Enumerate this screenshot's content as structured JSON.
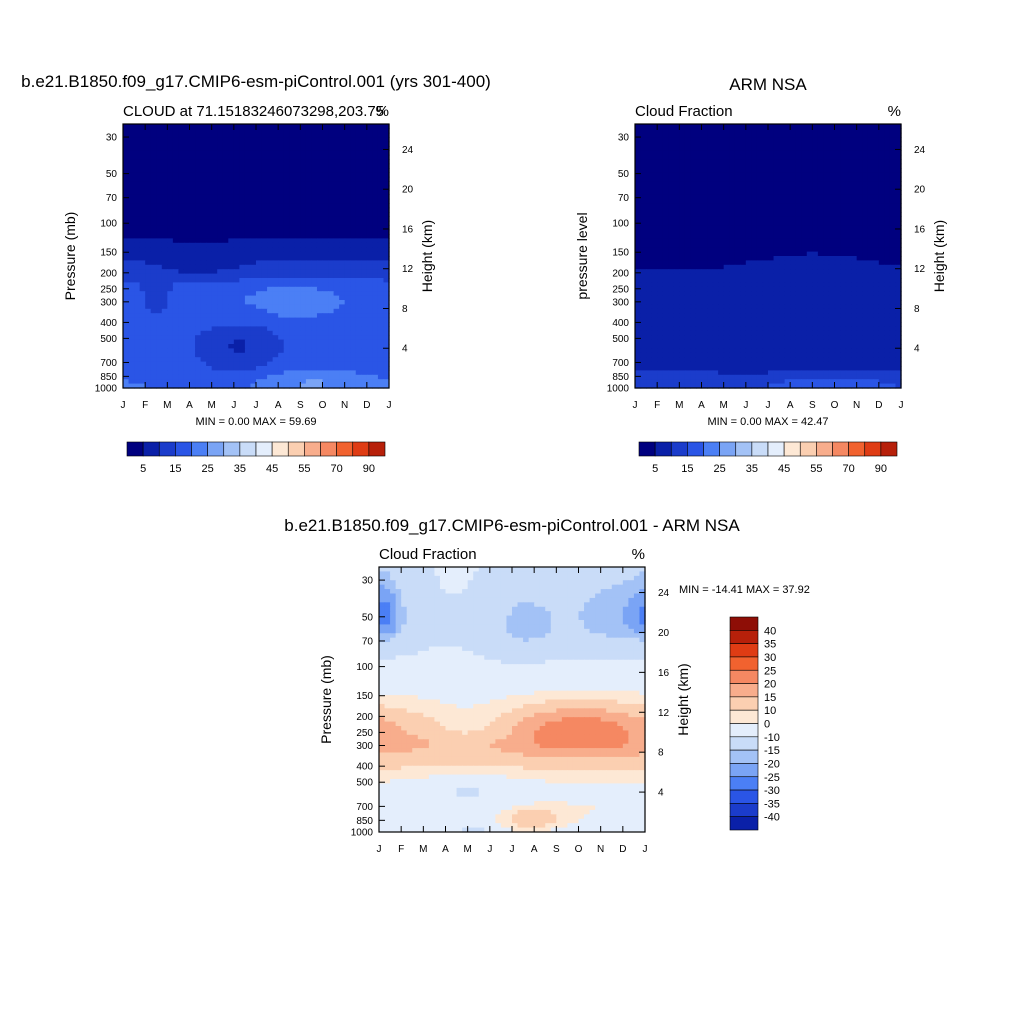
{
  "page_title": "",
  "palette": [
    "#00007f",
    "#0a20a8",
    "#1b3ccb",
    "#2a55e6",
    "#4b7ff5",
    "#7aa4f5",
    "#a3c2f6",
    "#c9dcf8",
    "#e4eefc",
    "#fde8d5",
    "#fbcfb1",
    "#f8ad8c",
    "#f58862",
    "#f1622f",
    "#df3c14",
    "#b7200a",
    "#8e0e06"
  ],
  "charts": [
    {
      "id": "model",
      "title": "b.e21.B1850.f09_g17.CMIP6-esm-piControl.001 (yrs 301-400)",
      "left_label": "CLOUD at 71.15183246073298,203.75",
      "right_label": "%",
      "ylabel": "Pressure (mb)",
      "y2label": "Height (km)",
      "stats": "MIN =   0.00 MAX =  59.69",
      "colorbar": {
        "orientation": "horizontal",
        "tick_labels": [
          "5",
          "15",
          "25",
          "35",
          "45",
          "55",
          "70",
          "90"
        ]
      }
    },
    {
      "id": "obs",
      "title": "ARM NSA",
      "left_label": "Cloud Fraction",
      "right_label": "%",
      "ylabel": "pressure level",
      "y2label": "Height (km)",
      "stats": "MIN =   0.00 MAX =  42.47",
      "colorbar": {
        "orientation": "horizontal",
        "tick_labels": [
          "5",
          "15",
          "25",
          "35",
          "45",
          "55",
          "70",
          "90"
        ]
      }
    },
    {
      "id": "diff",
      "title": "b.e21.B1850.f09_g17.CMIP6-esm-piControl.001 - ARM NSA",
      "left_label": "Cloud Fraction",
      "right_label": "%",
      "ylabel": "Pressure (mb)",
      "y2label": "Height (km)",
      "stats": "MIN = -14.41 MAX =  37.92",
      "colorbar": {
        "orientation": "vertical",
        "tick_labels": [
          "40",
          "35",
          "30",
          "25",
          "20",
          "15",
          "10",
          "0",
          "-10",
          "-15",
          "-20",
          "-25",
          "-30",
          "-35",
          "-40"
        ]
      }
    }
  ],
  "chart_data": [
    {
      "type": "heatmap",
      "title": "b.e21.B1850.f09_g17.CMIP6-esm-piControl.001 (yrs 301-400)",
      "ylabel": "Pressure (mb)",
      "y2label": "Height (km)",
      "x": [
        "J",
        "F",
        "M",
        "A",
        "M",
        "J",
        "J",
        "A",
        "S",
        "O",
        "N",
        "D",
        "J"
      ],
      "y_pressure_ticks": [
        "30",
        "50",
        "70",
        "100",
        "150",
        "200",
        "250",
        "300",
        "400",
        "500",
        "700",
        "850",
        "1000"
      ],
      "y2_height_ticks": [
        "24",
        "20",
        "16",
        "12",
        "8",
        "4"
      ],
      "levels": [
        5,
        15,
        25,
        35,
        45,
        55,
        70,
        90
      ],
      "min": 0.0,
      "max": 59.69,
      "profiles": {
        "pressure_mb": [
          30,
          50,
          70,
          100,
          150,
          200,
          250,
          300,
          400,
          500,
          700,
          850,
          1000
        ],
        "annual_mean_approx": [
          0,
          0,
          0,
          0,
          0,
          3,
          14,
          24,
          30,
          30,
          28,
          30,
          35
        ]
      }
    },
    {
      "type": "heatmap",
      "title": "ARM NSA",
      "ylabel": "pressure level",
      "y2label": "Height (km)",
      "x": [
        "J",
        "F",
        "M",
        "A",
        "M",
        "J",
        "J",
        "A",
        "S",
        "O",
        "N",
        "D",
        "J"
      ],
      "y_pressure_ticks": [
        "30",
        "50",
        "70",
        "100",
        "150",
        "200",
        "250",
        "300",
        "400",
        "500",
        "700",
        "850",
        "1000"
      ],
      "y2_height_ticks": [
        "24",
        "20",
        "16",
        "12",
        "8",
        "4"
      ],
      "levels": [
        5,
        15,
        25,
        35,
        45,
        55,
        70,
        90
      ],
      "min": 0.0,
      "max": 42.47,
      "profiles": {
        "pressure_mb": [
          30,
          50,
          70,
          100,
          150,
          200,
          250,
          300,
          400,
          500,
          700,
          850,
          1000
        ],
        "annual_mean_approx": [
          0,
          0,
          0,
          0,
          0,
          0,
          2,
          6,
          10,
          12,
          12,
          14,
          22
        ]
      }
    },
    {
      "type": "heatmap",
      "title": "b.e21.B1850.f09_g17.CMIP6-esm-piControl.001 - ARM NSA",
      "ylabel": "Pressure (mb)",
      "y2label": "Height (km)",
      "x": [
        "J",
        "F",
        "M",
        "A",
        "M",
        "J",
        "J",
        "A",
        "S",
        "O",
        "N",
        "D",
        "J"
      ],
      "y_pressure_ticks": [
        "30",
        "50",
        "70",
        "100",
        "150",
        "200",
        "250",
        "300",
        "400",
        "500",
        "700",
        "850",
        "1000"
      ],
      "y2_height_ticks": [
        "24",
        "20",
        "16",
        "12",
        "8",
        "4"
      ],
      "levels": [
        -40,
        -35,
        -30,
        -25,
        -20,
        -15,
        -10,
        0,
        10,
        15,
        20,
        25,
        30,
        35,
        40
      ],
      "min": -14.41,
      "max": 37.92,
      "profiles": {
        "pressure_mb": [
          30,
          50,
          70,
          100,
          150,
          200,
          250,
          300,
          400,
          500,
          700,
          850,
          1000
        ],
        "annual_mean_approx": [
          1,
          1,
          0,
          0,
          1,
          3,
          12,
          20,
          22,
          16,
          8,
          10,
          5
        ]
      }
    }
  ]
}
